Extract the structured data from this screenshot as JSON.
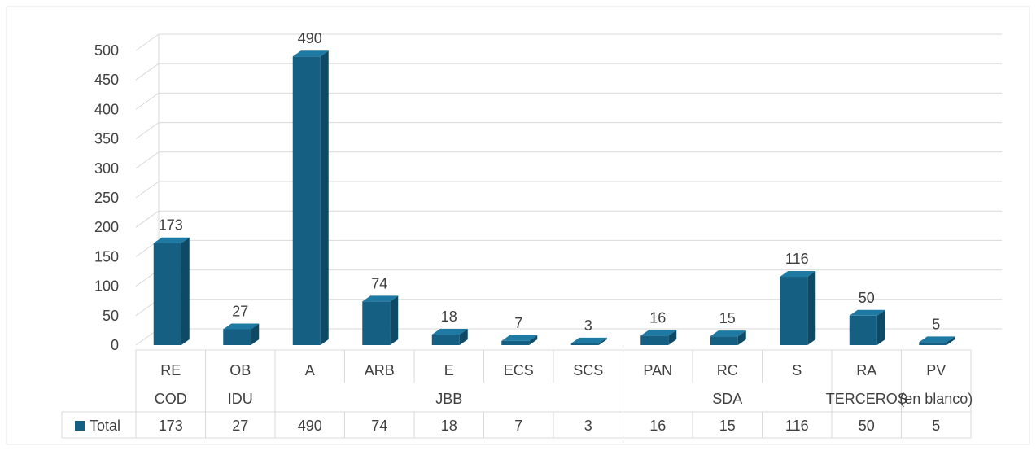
{
  "chart_data": {
    "type": "bar",
    "style": "3d-column",
    "title": "",
    "xlabel": "",
    "ylabel": "",
    "ylim": [
      0,
      500
    ],
    "yticks": [
      0,
      50,
      100,
      150,
      200,
      250,
      300,
      350,
      400,
      450,
      500
    ],
    "grid": true,
    "legend": "data-table",
    "categories": [
      "RE",
      "OB",
      "A",
      "ARB",
      "E",
      "ECS",
      "SCS",
      "PAN",
      "RC",
      "S",
      "RA",
      "PV"
    ],
    "groups": [
      {
        "label": "COD",
        "categories": [
          "RE"
        ]
      },
      {
        "label": "IDU",
        "categories": [
          "OB"
        ]
      },
      {
        "label": "JBB",
        "categories": [
          "A",
          "ARB",
          "E",
          "ECS",
          "SCS"
        ]
      },
      {
        "label": "SDA",
        "categories": [
          "PAN",
          "RC",
          "S"
        ]
      },
      {
        "label": "TERCEROS",
        "categories": [
          "RA"
        ]
      },
      {
        "label": "(en blanco)",
        "categories": [
          "PV"
        ]
      }
    ],
    "series": [
      {
        "name": "Total",
        "color": "#156082",
        "values": [
          173,
          27,
          490,
          74,
          18,
          7,
          3,
          16,
          15,
          116,
          50,
          5
        ]
      }
    ]
  }
}
